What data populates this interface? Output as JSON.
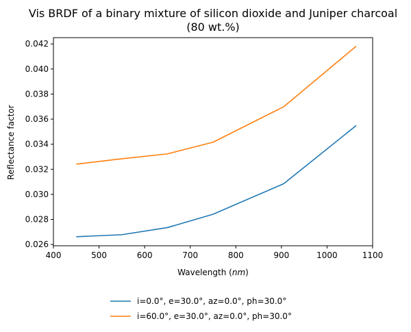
{
  "chart_data": {
    "type": "line",
    "title": "Vis BRDF of a binary mixture of silicon dioxide and Juniper charcoal",
    "subtitle": "(80 wt.%)",
    "xlabel": "Wavelength (nm)",
    "ylabel": "Reflectance factor",
    "xlim": [
      400,
      1100
    ],
    "ylim": [
      0.0259,
      0.0425
    ],
    "xticks": [
      400,
      500,
      600,
      700,
      800,
      900,
      1000,
      1100
    ],
    "yticks": [
      0.026,
      0.028,
      0.03,
      0.032,
      0.034,
      0.036,
      0.038,
      0.04,
      0.042
    ],
    "ytick_labels": [
      "0.026",
      "0.028",
      "0.030",
      "0.032",
      "0.034",
      "0.036",
      "0.038",
      "0.040",
      "0.042"
    ],
    "grid": false,
    "legend_position": "below plot, centered",
    "series": [
      {
        "name": "i=0.0°, e=30.0°, az=0.0°, ph=30.0°",
        "color": "#1f77b4",
        "x": [
          450,
          550,
          650,
          750,
          905,
          1064
        ],
        "y": [
          0.02662,
          0.02678,
          0.02735,
          0.02841,
          0.03085,
          0.03549
        ]
      },
      {
        "name": "i=60.0°, e=30.0°, az=0.0°, ph=30.0°",
        "color": "#ff7f0e",
        "x": [
          450,
          550,
          650,
          750,
          905,
          1064
        ],
        "y": [
          0.03241,
          0.03284,
          0.03323,
          0.03416,
          0.03699,
          0.04182
        ]
      }
    ]
  }
}
